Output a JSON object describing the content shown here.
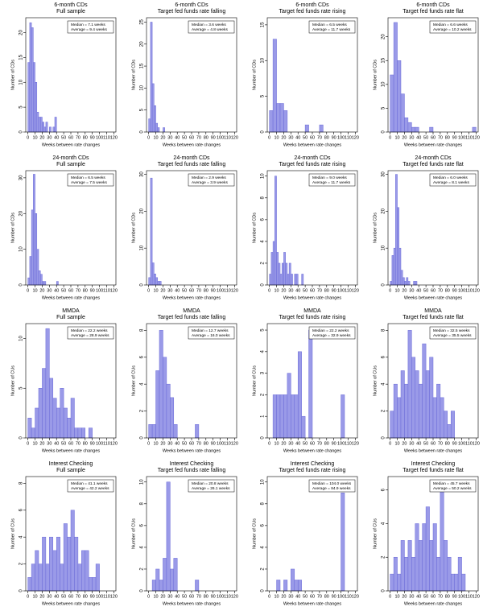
{
  "chart_data": [
    {
      "type": "histogram",
      "title": "6-month CDs",
      "subtitle": "Full sample",
      "xlabel": "Weeks between rate changes",
      "ylabel": "Number of CDs",
      "stats": [
        "Median =  7.1 weeks",
        "Average =  9.4 weeks"
      ],
      "color": "#9a9ae8",
      "bins": [
        0,
        2.5,
        5,
        7.5,
        10,
        12.5,
        15,
        17.5,
        20,
        22.5,
        25,
        27.5,
        30,
        32.5,
        35,
        37.5,
        40
      ],
      "values": [
        14,
        22,
        21,
        14,
        10,
        4,
        3,
        3,
        2,
        1,
        2,
        0,
        1,
        0,
        1,
        3
      ],
      "xlim": [
        -3,
        123
      ],
      "xticks": [
        0,
        10,
        20,
        30,
        40,
        50,
        60,
        70,
        80,
        90,
        100,
        110,
        120
      ],
      "ylim": [
        0,
        23
      ],
      "yticks": [
        0,
        5,
        10,
        15,
        20
      ]
    },
    {
      "type": "histogram",
      "title": "6-month CDs",
      "subtitle": "Target fed funds rate falling",
      "xlabel": "Weeks between rate changes",
      "ylabel": "Number of CDs",
      "stats": [
        "Median =  3.6 weeks",
        "Average =  4.8 weeks"
      ],
      "color": "#9a9ae8",
      "bins": [
        0,
        2.5,
        5,
        7.5,
        10,
        12.5,
        15,
        17.5,
        20,
        22.5
      ],
      "values": [
        3,
        25,
        11,
        6,
        2,
        1,
        0,
        0,
        1
      ],
      "xlim": [
        -3,
        123
      ],
      "xticks": [
        0,
        10,
        20,
        30,
        40,
        50,
        60,
        70,
        80,
        90,
        100,
        110,
        120
      ],
      "ylim": [
        0,
        26
      ],
      "yticks": [
        0,
        5,
        10,
        15,
        20,
        25
      ]
    },
    {
      "type": "histogram",
      "title": "6-month CDs",
      "subtitle": "Target fed funds rate rising",
      "xlabel": "Weeks between rate changes",
      "ylabel": "Number of CDs",
      "stats": [
        "Median =  6.5 weeks",
        "Average = 11.7 weeks"
      ],
      "color": "#9a9ae8",
      "bins": [
        0,
        5,
        10,
        15,
        20,
        25,
        30,
        35,
        40,
        45,
        50,
        55,
        60,
        65,
        70,
        75
      ],
      "values": [
        3,
        13,
        4,
        4,
        3,
        0,
        0,
        0,
        0,
        0,
        1,
        0,
        0,
        0,
        1
      ],
      "xlim": [
        -3,
        123
      ],
      "xticks": [
        0,
        10,
        20,
        30,
        40,
        50,
        60,
        70,
        80,
        90,
        100,
        110,
        120
      ],
      "ylim": [
        0,
        16
      ],
      "yticks": [
        0,
        5,
        10,
        15
      ]
    },
    {
      "type": "histogram",
      "title": "6-month CDs",
      "subtitle": "Target fed funds rate flat",
      "xlabel": "Weeks between rate changes",
      "ylabel": "Number of CDs",
      "stats": [
        "Median =  6.6 weeks",
        "Average = 10.2 weeks"
      ],
      "color": "#9a9ae8",
      "bins": [
        0,
        5,
        10,
        15,
        20,
        25,
        30,
        35,
        40,
        45,
        50,
        55,
        60,
        65,
        70,
        75,
        80,
        85,
        90,
        95,
        100,
        105,
        110,
        115,
        120
      ],
      "values": [
        12,
        23,
        15,
        8,
        3,
        2,
        1,
        1,
        0,
        0,
        0,
        1,
        0,
        0,
        0,
        0,
        0,
        0,
        0,
        0,
        0,
        0,
        0,
        1
      ],
      "xlim": [
        -3,
        123
      ],
      "xticks": [
        0,
        10,
        20,
        30,
        40,
        50,
        60,
        70,
        80,
        90,
        100,
        110,
        120
      ],
      "ylim": [
        0,
        24
      ],
      "yticks": [
        0,
        5,
        10,
        15,
        20
      ]
    },
    {
      "type": "histogram",
      "title": "24-month CDs",
      "subtitle": "Full sample",
      "xlabel": "Weeks between rate changes",
      "ylabel": "Number of CDs",
      "stats": [
        "Median =  6.5 weeks",
        "Average =  7.5 weeks"
      ],
      "color": "#9a9ae8",
      "bins": [
        0,
        2.5,
        5,
        7.5,
        10,
        12.5,
        15,
        17.5,
        20,
        22.5,
        25,
        27.5,
        30,
        32.5,
        35,
        37.5,
        40,
        42.5
      ],
      "values": [
        2,
        8,
        21,
        31,
        20,
        10,
        4,
        3,
        1,
        1,
        0,
        0,
        0,
        0,
        0,
        0,
        1
      ],
      "xlim": [
        -3,
        123
      ],
      "xticks": [
        0,
        10,
        20,
        30,
        40,
        50,
        60,
        70,
        80,
        90,
        100,
        110,
        120
      ],
      "ylim": [
        0,
        32
      ],
      "yticks": [
        0,
        10,
        20,
        30
      ]
    },
    {
      "type": "histogram",
      "title": "24-month CDs",
      "subtitle": "Target fed funds rate falling",
      "xlabel": "Weeks between rate changes",
      "ylabel": "Number of CDs",
      "stats": [
        "Median =  2.9 weeks",
        "Average =  3.9 weeks"
      ],
      "color": "#9a9ae8",
      "bins": [
        0,
        2.5,
        5,
        7.5,
        10,
        12.5,
        15,
        17.5
      ],
      "values": [
        2,
        29,
        6,
        3,
        2,
        1,
        1
      ],
      "xlim": [
        -3,
        123
      ],
      "xticks": [
        0,
        10,
        20,
        30,
        40,
        50,
        60,
        70,
        80,
        90,
        100,
        110,
        120
      ],
      "ylim": [
        0,
        31
      ],
      "yticks": [
        0,
        10,
        20,
        30
      ]
    },
    {
      "type": "histogram",
      "title": "24-month CDs",
      "subtitle": "Target fed funds rate rising",
      "xlabel": "Weeks between rate changes",
      "ylabel": "Number of CDs",
      "stats": [
        "Median =  9.0 weeks",
        "Average = 11.7 weeks"
      ],
      "color": "#9a9ae8",
      "bins": [
        0,
        2.5,
        5,
        7.5,
        10,
        12.5,
        15,
        17.5,
        20,
        22.5,
        25,
        27.5,
        30,
        32.5,
        35,
        37.5,
        40,
        42.5,
        45,
        47.5
      ],
      "values": [
        1,
        3,
        4,
        10,
        3,
        2,
        1,
        2,
        3,
        2,
        1,
        2,
        1,
        0,
        1,
        1,
        0,
        0,
        1
      ],
      "xlim": [
        -3,
        123
      ],
      "xticks": [
        0,
        10,
        20,
        30,
        40,
        50,
        60,
        70,
        80,
        90,
        100,
        110,
        120
      ],
      "ylim": [
        0,
        10.5
      ],
      "yticks": [
        0,
        2,
        4,
        6,
        8,
        10
      ]
    },
    {
      "type": "histogram",
      "title": "24-month CDs",
      "subtitle": "Target fed funds rate flat",
      "xlabel": "Weeks between rate changes",
      "ylabel": "Number of CDs",
      "stats": [
        "Median =  6.0 weeks",
        "Average =  8.1 weeks"
      ],
      "color": "#9a9ae8",
      "bins": [
        0,
        2.5,
        5,
        7.5,
        10,
        12.5,
        15,
        17.5,
        20,
        22.5,
        25,
        27.5,
        30,
        32.5,
        35,
        37.5
      ],
      "values": [
        1,
        8,
        10,
        30,
        21,
        10,
        4,
        2,
        1,
        2,
        1,
        0,
        0,
        1,
        1
      ],
      "xlim": [
        -3,
        123
      ],
      "xticks": [
        0,
        10,
        20,
        30,
        40,
        50,
        60,
        70,
        80,
        90,
        100,
        110,
        120
      ],
      "ylim": [
        0,
        31
      ],
      "yticks": [
        0,
        10,
        20,
        30
      ]
    },
    {
      "type": "histogram",
      "title": "MMDA",
      "subtitle": "Full sample",
      "xlabel": "Weeks between rate changes",
      "ylabel": "Number of CUs",
      "stats": [
        "Median = 22.2 weeks",
        "Average = 28.9 weeks"
      ],
      "color": "#9a9ae8",
      "bins": [
        0,
        5,
        10,
        15,
        20,
        25,
        30,
        35,
        40,
        45,
        50,
        55,
        60,
        65,
        70,
        75,
        80,
        85,
        90
      ],
      "values": [
        2,
        1,
        3,
        5,
        7,
        11,
        6,
        4,
        3,
        5,
        3,
        2,
        4,
        1,
        1,
        1,
        0,
        1
      ],
      "xlim": [
        -3,
        123
      ],
      "xticks": [
        0,
        10,
        20,
        30,
        40,
        50,
        60,
        70,
        80,
        90,
        100,
        110,
        120
      ],
      "ylim": [
        0,
        11.5
      ],
      "yticks": [
        0,
        5,
        10
      ]
    },
    {
      "type": "histogram",
      "title": "MMDA",
      "subtitle": "Target fed funds rate falling",
      "xlabel": "Weeks between rate changes",
      "ylabel": "Number of CUs",
      "stats": [
        "Median = 12.7 weeks",
        "Average = 16.0 weeks"
      ],
      "color": "#9a9ae8",
      "bins": [
        0,
        5,
        10,
        15,
        20,
        25,
        30,
        35,
        40,
        45,
        50,
        55,
        60,
        65,
        70
      ],
      "values": [
        1,
        1,
        5,
        8,
        6,
        4,
        3,
        1,
        0,
        0,
        0,
        0,
        0,
        1
      ],
      "xlim": [
        -3,
        123
      ],
      "xticks": [
        0,
        10,
        20,
        30,
        40,
        50,
        60,
        70,
        80,
        90,
        100,
        110,
        120
      ],
      "ylim": [
        0,
        8.5
      ],
      "yticks": [
        0,
        2,
        4,
        6,
        8
      ]
    },
    {
      "type": "histogram",
      "title": "MMDA",
      "subtitle": "Target fed funds rate rising",
      "xlabel": "Weeks between rate changes",
      "ylabel": "Number of CUs",
      "stats": [
        "Median = 22.2 weeks",
        "Average = 32.9 weeks"
      ],
      "color": "#9a9ae8",
      "bins": [
        0,
        5,
        10,
        15,
        20,
        25,
        30,
        35,
        40,
        45,
        50,
        55,
        60,
        65,
        70,
        75,
        80,
        85,
        90,
        95,
        100,
        105
      ],
      "values": [
        0,
        2,
        2,
        2,
        2,
        3,
        2,
        2,
        4,
        1,
        0,
        5,
        0,
        0,
        0,
        0,
        0,
        0,
        0,
        0,
        2
      ],
      "xlim": [
        -3,
        123
      ],
      "xticks": [
        0,
        10,
        20,
        30,
        40,
        50,
        60,
        70,
        80,
        90,
        100,
        110,
        120
      ],
      "ylim": [
        0,
        5.3
      ],
      "yticks": [
        0,
        1,
        2,
        3,
        4,
        5
      ]
    },
    {
      "type": "histogram",
      "title": "MMDA",
      "subtitle": "Target fed funds rate flat",
      "xlabel": "Weeks between rate changes",
      "ylabel": "Number of CUs",
      "stats": [
        "Median = 32.5 weeks",
        "Average = 35.5 weeks"
      ],
      "color": "#9a9ae8",
      "bins": [
        0,
        5,
        10,
        15,
        20,
        25,
        30,
        35,
        40,
        45,
        50,
        55,
        60,
        65,
        70,
        75,
        80,
        85,
        90
      ],
      "values": [
        2,
        4,
        3,
        5,
        4,
        8,
        6,
        5,
        4,
        7,
        5,
        6,
        3,
        4,
        3,
        2,
        1,
        2
      ],
      "xlim": [
        -3,
        123
      ],
      "xticks": [
        0,
        10,
        20,
        30,
        40,
        50,
        60,
        70,
        80,
        90,
        100,
        110,
        120
      ],
      "ylim": [
        0,
        8.5
      ],
      "yticks": [
        0,
        2,
        4,
        6,
        8
      ]
    },
    {
      "type": "histogram",
      "title": "Interest Checking",
      "subtitle": "Full sample",
      "xlabel": "Weeks between rate changes",
      "ylabel": "Number of CUs",
      "stats": [
        "Median = 41.1 weeks",
        "Average = 42.2 weeks"
      ],
      "color": "#9a9ae8",
      "bins": [
        0,
        5,
        10,
        15,
        20,
        25,
        30,
        35,
        40,
        45,
        50,
        55,
        60,
        65,
        70,
        75,
        80,
        85,
        90,
        95,
        100
      ],
      "values": [
        1,
        2,
        3,
        2,
        4,
        2,
        4,
        3,
        4,
        2,
        5,
        4,
        6,
        4,
        2,
        3,
        3,
        1,
        1,
        2
      ],
      "xlim": [
        -3,
        123
      ],
      "xticks": [
        0,
        10,
        20,
        30,
        40,
        50,
        60,
        70,
        80,
        90,
        100,
        110,
        120
      ],
      "ylim": [
        0,
        8.5
      ],
      "yticks": [
        0,
        2,
        4,
        6,
        8
      ]
    },
    {
      "type": "histogram",
      "title": "Interest Checking",
      "subtitle": "Target fed funds rate falling",
      "xlabel": "Weeks between rate changes",
      "ylabel": "Number of CUs",
      "stats": [
        "Median = 20.8 weeks",
        "Average = 26.1 weeks"
      ],
      "color": "#9a9ae8",
      "bins": [
        0,
        5,
        10,
        15,
        20,
        25,
        30,
        35,
        40,
        45,
        50,
        55,
        60,
        65,
        70
      ],
      "values": [
        0,
        1,
        2,
        1,
        3,
        10,
        2,
        3,
        0,
        0,
        0,
        0,
        0,
        1
      ],
      "xlim": [
        -3,
        123
      ],
      "xticks": [
        0,
        10,
        20,
        30,
        40,
        50,
        60,
        70,
        80,
        90,
        100,
        110,
        120
      ],
      "ylim": [
        0,
        10.5
      ],
      "yticks": [
        0,
        2,
        4,
        6,
        8,
        10
      ]
    },
    {
      "type": "histogram",
      "title": "Interest Checking",
      "subtitle": "Target fed funds rate rising",
      "xlabel": "Weeks between rate changes",
      "ylabel": "Number of CUs",
      "stats": [
        "Median = 104.0 weeks",
        "Average = 84.9 weeks"
      ],
      "color": "#9a9ae8",
      "bins": [
        0,
        5,
        10,
        15,
        20,
        25,
        30,
        35,
        40,
        45,
        50,
        55,
        60,
        65,
        70,
        75,
        80,
        85,
        90,
        95,
        100,
        105
      ],
      "values": [
        0,
        0,
        1,
        0,
        1,
        0,
        2,
        1,
        1,
        0,
        0,
        0,
        0,
        0,
        0,
        0,
        0,
        0,
        0,
        0,
        9
      ],
      "xlim": [
        -3,
        123
      ],
      "xticks": [
        0,
        10,
        20,
        30,
        40,
        50,
        60,
        70,
        80,
        90,
        100,
        110,
        120
      ],
      "ylim": [
        0,
        10.5
      ],
      "yticks": [
        0,
        2,
        4,
        6,
        8,
        10
      ]
    },
    {
      "type": "histogram",
      "title": "Interest Checking",
      "subtitle": "Target fed funds rate flat",
      "xlabel": "Weeks between rate changes",
      "ylabel": "Number of CUs",
      "stats": [
        "Median = 45.7 weeks",
        "Average = 50.2 weeks"
      ],
      "color": "#9a9ae8",
      "bins": [
        0,
        5,
        10,
        15,
        20,
        25,
        30,
        35,
        40,
        45,
        50,
        55,
        60,
        65,
        70,
        75,
        80,
        85,
        90,
        95,
        100,
        105
      ],
      "values": [
        1,
        2,
        1,
        3,
        2,
        3,
        2,
        4,
        3,
        4,
        5,
        3,
        4,
        2,
        6,
        3,
        2,
        1,
        1,
        2,
        1
      ],
      "xlim": [
        -3,
        123
      ],
      "xticks": [
        0,
        10,
        20,
        30,
        40,
        50,
        60,
        70,
        80,
        90,
        100,
        110,
        120
      ],
      "ylim": [
        0,
        6.8
      ],
      "yticks": [
        0,
        2,
        4,
        6
      ]
    }
  ]
}
